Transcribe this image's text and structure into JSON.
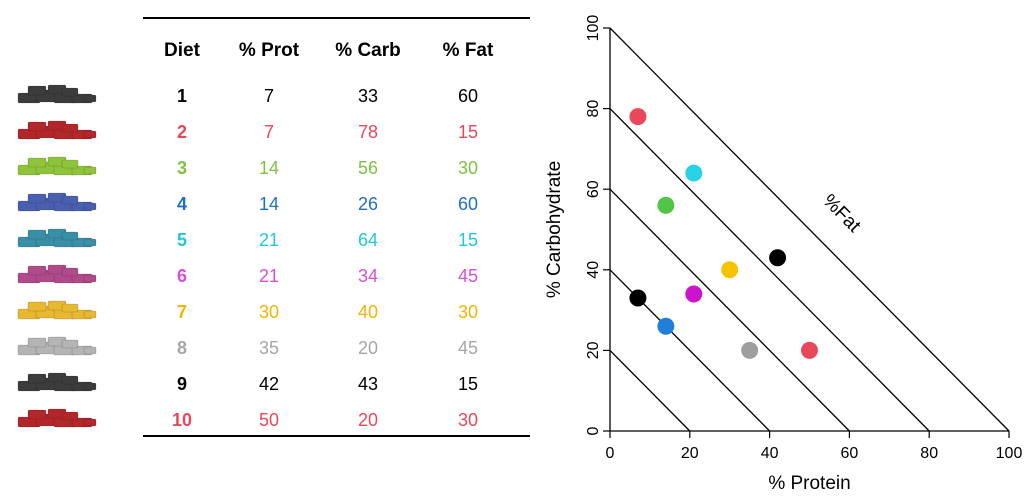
{
  "table": {
    "headers": [
      "Diet",
      "% Prot",
      "% Carb",
      "% Fat"
    ],
    "rows": [
      {
        "diet": "1",
        "prot": "7",
        "carb": "33",
        "fat": "60",
        "color": "#000000"
      },
      {
        "diet": "2",
        "prot": "7",
        "carb": "78",
        "fat": "15",
        "color": "#e8485a"
      },
      {
        "diet": "3",
        "prot": "14",
        "carb": "56",
        "fat": "30",
        "color": "#7cc243"
      },
      {
        "diet": "4",
        "prot": "14",
        "carb": "26",
        "fat": "60",
        "color": "#1f6fc7"
      },
      {
        "diet": "5",
        "prot": "21",
        "carb": "64",
        "fat": "15",
        "color": "#1fc9d9"
      },
      {
        "diet": "6",
        "prot": "21",
        "carb": "34",
        "fat": "45",
        "color": "#d84fd8"
      },
      {
        "diet": "7",
        "prot": "30",
        "carb": "40",
        "fat": "30",
        "color": "#f4b400"
      },
      {
        "diet": "8",
        "prot": "35",
        "carb": "20",
        "fat": "45",
        "color": "#a6a6a6"
      },
      {
        "diet": "9",
        "prot": "42",
        "carb": "43",
        "fat": "15",
        "color": "#000000"
      },
      {
        "diet": "10",
        "prot": "50",
        "carb": "20",
        "fat": "30",
        "color": "#e8485a"
      }
    ]
  },
  "icon_colors": [
    "#3c3c3c",
    "#b3262a",
    "#8fc43a",
    "#4a5fb0",
    "#3a8fa8",
    "#b04a8a",
    "#e8b830",
    "#b4b4b4",
    "#3c3c3c",
    "#b3262a"
  ],
  "chart_data": {
    "type": "scatter",
    "xlabel": "% Protein",
    "ylabel": "% Carbohydrate",
    "xlim": [
      0,
      100
    ],
    "ylim": [
      0,
      100
    ],
    "xticks": [
      0,
      20,
      40,
      60,
      80,
      100
    ],
    "yticks": [
      0,
      20,
      40,
      60,
      80,
      100
    ],
    "fat_isolines": [
      20,
      40,
      60,
      80,
      100
    ],
    "fat_label": "%Fat",
    "points": [
      {
        "x": 7,
        "y": 33,
        "color": "#000000"
      },
      {
        "x": 7,
        "y": 78,
        "color": "#e8485a"
      },
      {
        "x": 14,
        "y": 56,
        "color": "#52c446"
      },
      {
        "x": 14,
        "y": 26,
        "color": "#1f7fd9"
      },
      {
        "x": 21,
        "y": 64,
        "color": "#27d3e6"
      },
      {
        "x": 21,
        "y": 34,
        "color": "#cc14cc"
      },
      {
        "x": 30,
        "y": 40,
        "color": "#f7c200"
      },
      {
        "x": 35,
        "y": 20,
        "color": "#9e9e9e"
      },
      {
        "x": 42,
        "y": 43,
        "color": "#000000"
      },
      {
        "x": 50,
        "y": 20,
        "color": "#e8485a"
      }
    ]
  }
}
